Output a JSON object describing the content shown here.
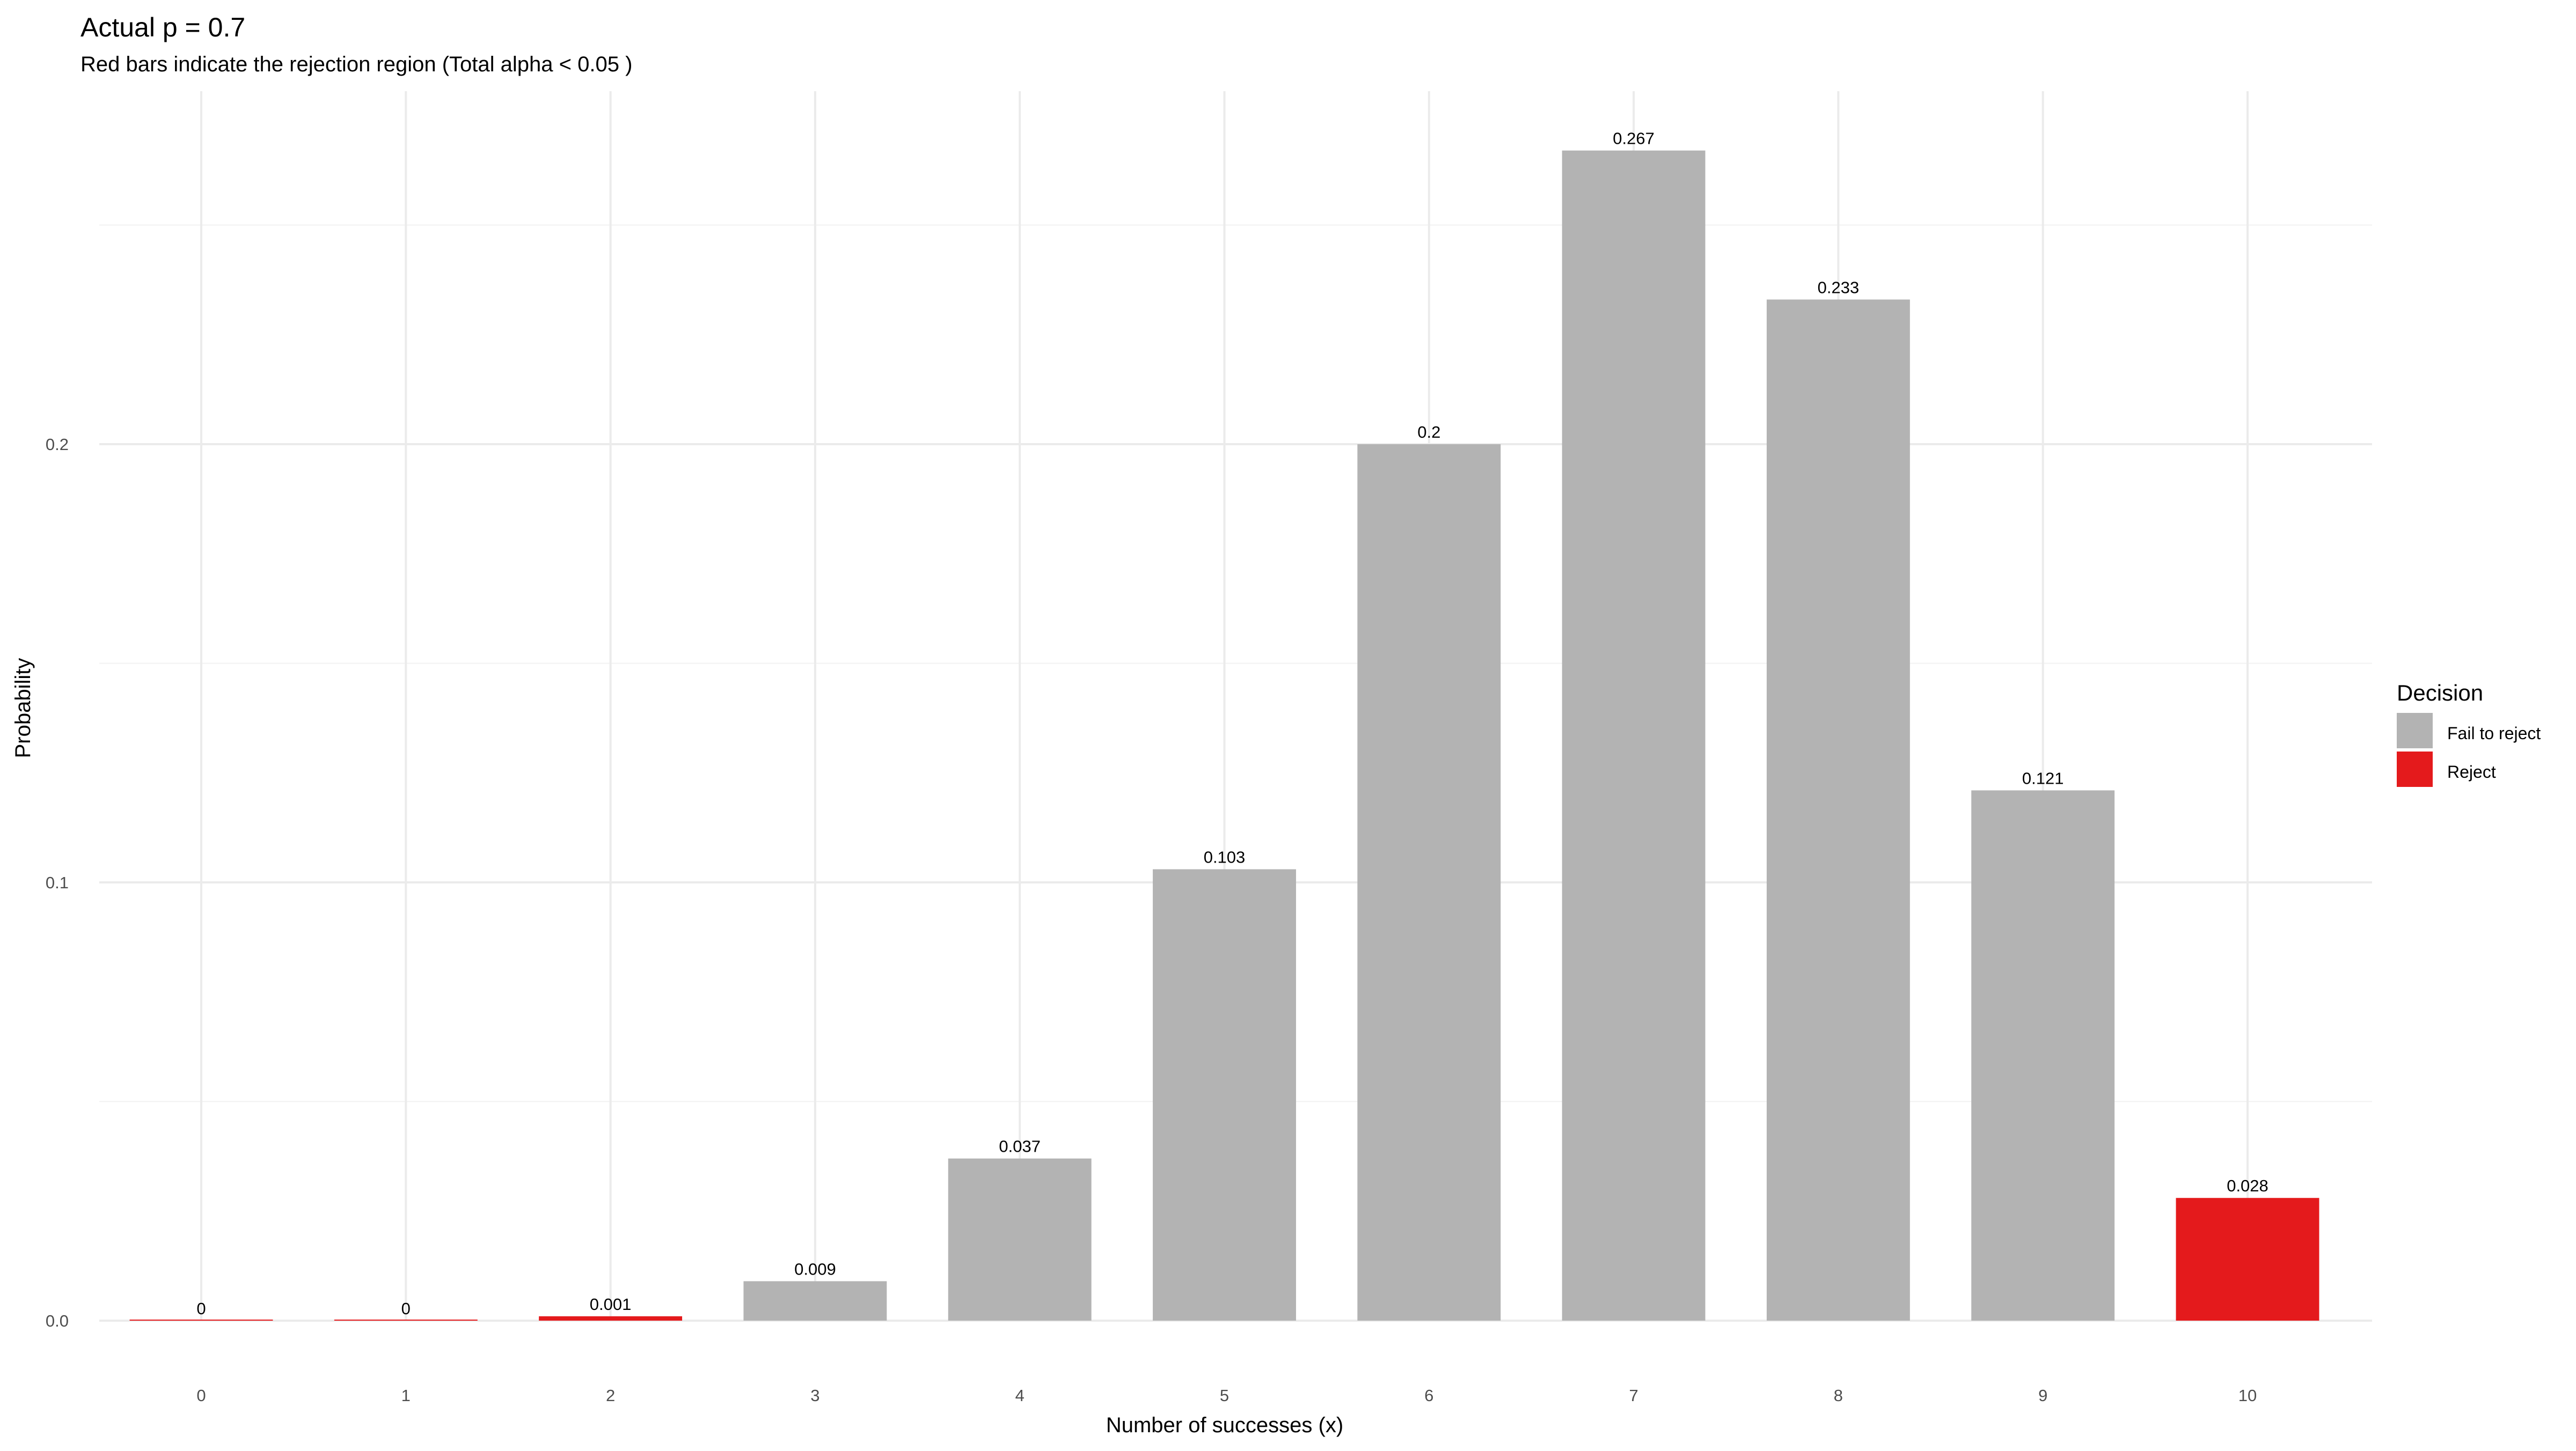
{
  "chart_data": {
    "type": "bar",
    "title": "Actual p = 0.7",
    "subtitle": "Red bars indicate the rejection region (Total alpha < 0.05 )",
    "xlabel": "Number of successes (x)",
    "ylabel": "Probability",
    "categories": [
      "0",
      "1",
      "2",
      "3",
      "4",
      "5",
      "6",
      "7",
      "8",
      "9",
      "10"
    ],
    "values": [
      0,
      0,
      0.001,
      0.009,
      0.037,
      0.103,
      0.2,
      0.267,
      0.233,
      0.121,
      0.028
    ],
    "labels": [
      "0",
      "0",
      "0.001",
      "0.009",
      "0.037",
      "0.103",
      "0.2",
      "0.267",
      "0.233",
      "0.121",
      "0.028"
    ],
    "decision": [
      "Reject",
      "Reject",
      "Reject",
      "Fail to reject",
      "Fail to reject",
      "Fail to reject",
      "Fail to reject",
      "Fail to reject",
      "Fail to reject",
      "Fail to reject",
      "Reject"
    ],
    "yticks": [
      "0.0",
      "0.1",
      "0.2"
    ],
    "ytick_values": [
      0,
      0.1,
      0.2
    ],
    "ylim": [
      0,
      0.28
    ],
    "grid": true,
    "legend": {
      "title": "Decision",
      "placement": "right",
      "entries": [
        {
          "label": "Fail to reject",
          "color": "#B3B3B3"
        },
        {
          "label": "Reject",
          "color": "#E41A1C"
        }
      ]
    }
  }
}
